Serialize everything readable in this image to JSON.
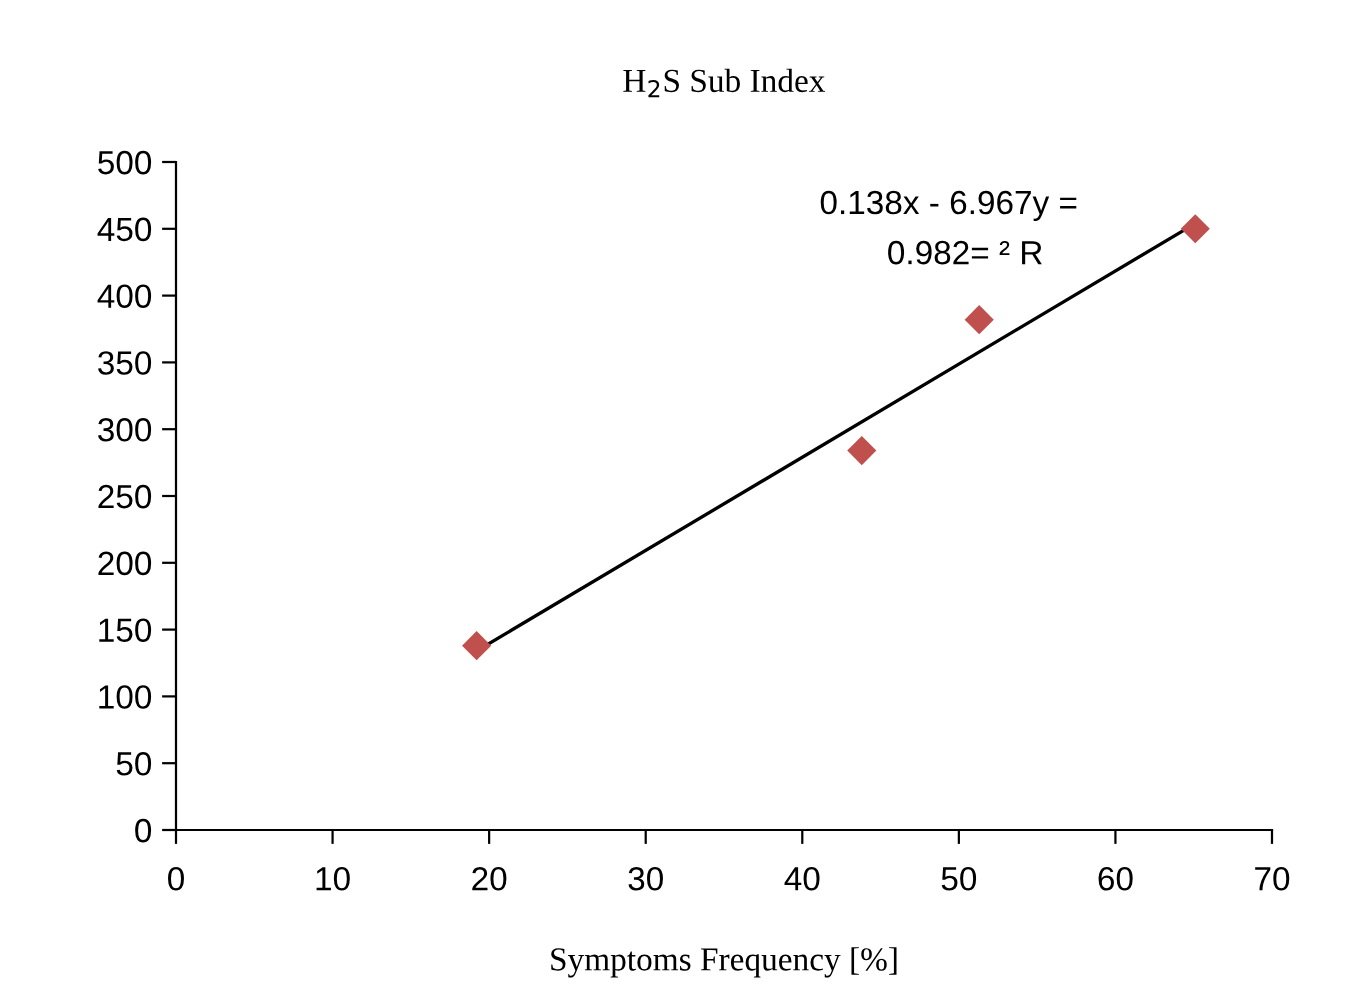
{
  "chart_data": {
    "type": "scatter",
    "title": "H$_{2}$S Sub Index",
    "xlabel": "Symptoms Frequency [%]",
    "series": [
      {
        "color": "#c0504d",
        "x": [
          19.2,
          43.8,
          51.3,
          65.1
        ],
        "values": [
          138,
          284,
          382,
          450
        ],
        "marker": "diamond"
      },
      {
        "type": "line",
        "color": "#000000",
        "x": [
          19.2,
          65.1
        ],
        "values": [
          134,
          454
        ],
        "marker": "none"
      }
    ],
    "annotations": [
      "0.138x - 6.967y =",
      "0.982= ² R"
    ],
    "xlim": [
      0,
      70
    ],
    "xticks": [
      0,
      10,
      20,
      30,
      40,
      50,
      60,
      70
    ],
    "ylim": [
      0,
      500
    ],
    "yticks": [
      0,
      50,
      100,
      150,
      200,
      250,
      300,
      350,
      400,
      450,
      500
    ],
    "grid": false,
    "legend": false
  }
}
